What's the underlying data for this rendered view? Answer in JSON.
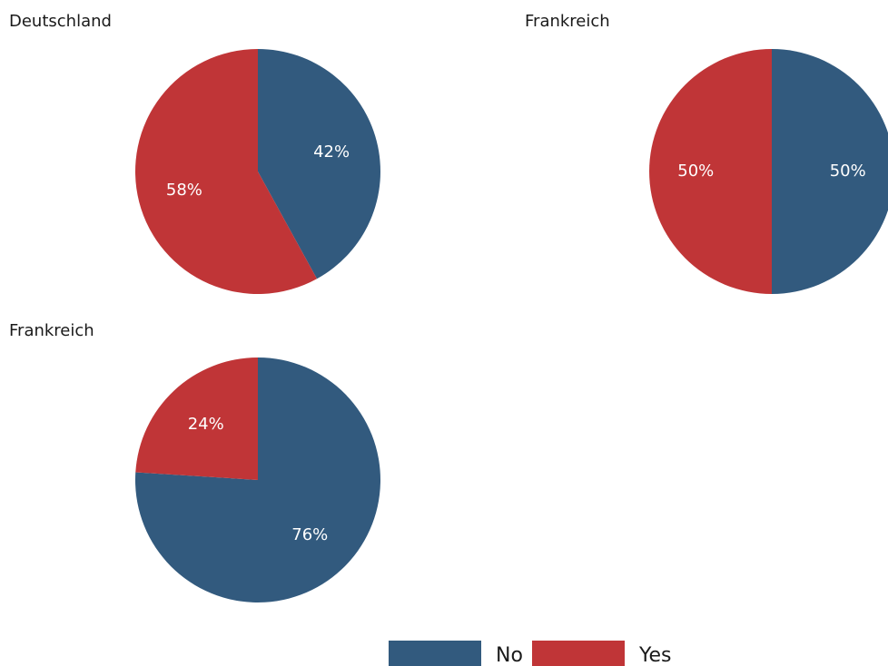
{
  "chart_data": {
    "type": "pie",
    "categories": [
      "No",
      "Yes"
    ],
    "colors": {
      "No": "#325a7e",
      "Yes": "#c03537"
    },
    "charts": [
      {
        "title": "Deutschland",
        "values": {
          "No": 42,
          "Yes": 58
        },
        "labels": {
          "No": "42%",
          "Yes": "58%"
        }
      },
      {
        "title": "Frankreich",
        "values": {
          "No": 50,
          "Yes": 50
        },
        "labels": {
          "No": "50%",
          "Yes": "50%"
        }
      },
      {
        "title": "Frankreich",
        "values": {
          "No": 76,
          "Yes": 24
        },
        "labels": {
          "No": "76%",
          "Yes": "24%"
        }
      }
    ],
    "legend": {
      "placement": "bottom-center",
      "items": [
        {
          "name": "No",
          "color": "#325a7e"
        },
        {
          "name": "Yes",
          "color": "#c03537"
        }
      ]
    }
  }
}
